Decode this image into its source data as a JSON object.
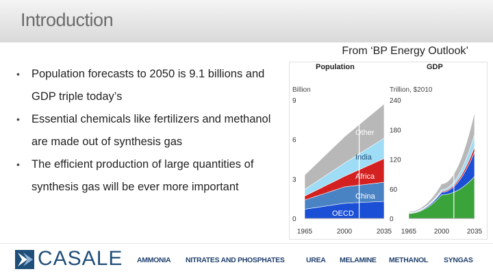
{
  "slide": {
    "title": "Introduction",
    "source": "From ‘BP Energy Outlook’"
  },
  "bullets": [
    "Population forecasts to 2050 is 9.1 billions and GDP triple today’s",
    "Essential chemicals like fertilizers and methanol are made out of synthesis gas",
    "The efficient production of large quantities of synthesis gas will be ever more important"
  ],
  "chart_data": [
    {
      "type": "area",
      "title": "Population",
      "ylabel": "Billion",
      "x": [
        1965,
        2000,
        2035
      ],
      "xticks": [
        "1965",
        "2000",
        "2035"
      ],
      "yticks": [
        "0",
        "3",
        "6",
        "9"
      ],
      "ylim": [
        0,
        9
      ],
      "series": [
        {
          "name": "OECD",
          "values": [
            0.7,
            1.15,
            1.3
          ],
          "color": "#1a4fd6"
        },
        {
          "name": "China",
          "values": [
            0.7,
            1.25,
            1.45
          ],
          "color": "#4a83c4"
        },
        {
          "name": "Africa",
          "values": [
            0.3,
            0.8,
            1.8
          ],
          "color": "#d32020"
        },
        {
          "name": "India",
          "values": [
            0.5,
            1.0,
            1.55
          ],
          "color": "#9fdcf5"
        },
        {
          "name": "Other",
          "values": [
            1.1,
            2.0,
            2.6
          ],
          "color": "#b8b8b8"
        }
      ]
    },
    {
      "type": "area",
      "title": "GDP",
      "ylabel": "Trillion, $2010",
      "x": [
        1965,
        2000,
        2035
      ],
      "xticks": [
        "1965",
        "2000",
        "2035"
      ],
      "yticks": [
        "0",
        "60",
        "120",
        "180",
        "240"
      ],
      "ylim": [
        0,
        240
      ],
      "series": [
        {
          "name": "OECD",
          "values": [
            10,
            48,
            85
          ],
          "color": "#3aa33a"
        },
        {
          "name": "China",
          "values": [
            1,
            5,
            50
          ],
          "color": "#1a4fd6"
        },
        {
          "name": "Africa",
          "values": [
            0.3,
            2,
            10
          ],
          "color": "#d32020"
        },
        {
          "name": "India",
          "values": [
            0.5,
            3,
            25
          ],
          "color": "#9fdcf5"
        },
        {
          "name": "Other",
          "values": [
            2,
            12,
            45
          ],
          "color": "#b8b8b8"
        }
      ]
    }
  ],
  "footer": {
    "logo_text": "CASALE",
    "nav": [
      "AMMONIA",
      "NITRATES AND PHOSPHATES",
      "UREA",
      "MELAMINE",
      "METHANOL",
      "SYNGAS"
    ]
  }
}
